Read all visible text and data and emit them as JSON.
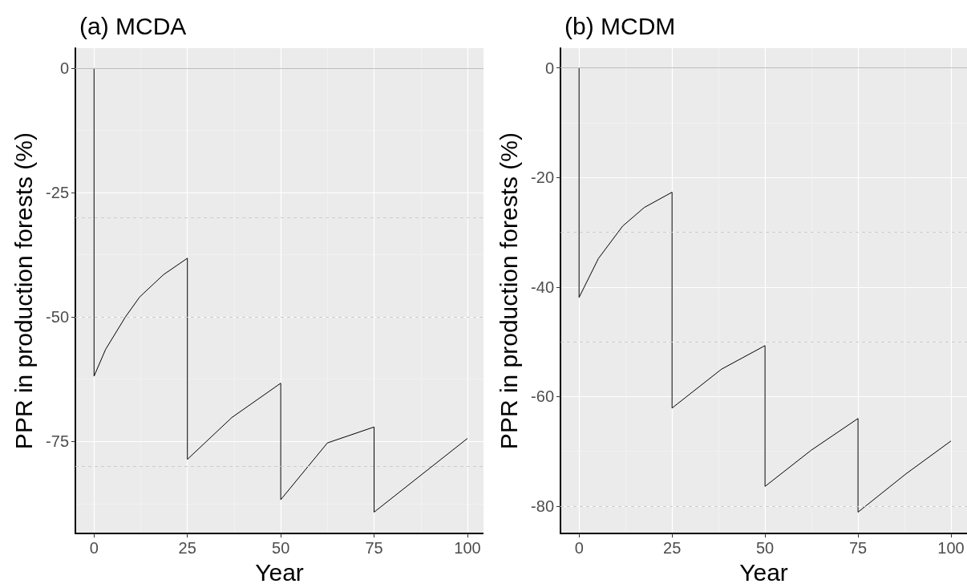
{
  "chart_data": [
    {
      "type": "line",
      "title": "(a) MCDA",
      "xlabel": "Year",
      "ylabel": "PPR in production forests (%)",
      "xlim": [
        -5,
        104.3
      ],
      "xticks": [
        0,
        25,
        50,
        75,
        100
      ],
      "ylim": [
        -93.5,
        4
      ],
      "yticks": [
        0,
        -25,
        -50,
        -75
      ],
      "grid": true,
      "marker": "none",
      "line_style": "solid",
      "series": [
        {
          "color": "#000000",
          "x": [
            0,
            0,
            3.1,
            8.4,
            12.2,
            18.6,
            25,
            25,
            36.9,
            50,
            50,
            62.5,
            75,
            75,
            100
          ],
          "values": [
            0,
            -61.9,
            -56.5,
            -50,
            -46,
            -41.5,
            -38.2,
            -78.6,
            -70.2,
            -63.3,
            -86.7,
            -75.3,
            -72.1,
            -89.2,
            -74.4
          ]
        }
      ],
      "ref_lines": [
        {
          "axis": "y",
          "value": 0,
          "color": "#bebebe",
          "line_style": "solid"
        },
        {
          "axis": "y",
          "value": -30,
          "color": "#cccccc",
          "line_style": "dashed"
        },
        {
          "axis": "y",
          "value": -50,
          "color": "#cccccc",
          "line_style": "dashed"
        },
        {
          "axis": "y",
          "value": -80,
          "color": "#cccccc",
          "line_style": "dashed"
        }
      ]
    },
    {
      "type": "line",
      "title": "(b) MCDM",
      "xlabel": "Year",
      "ylabel": "PPR in production forests (%)",
      "xlim": [
        -5,
        104.3
      ],
      "xticks": [
        0,
        25,
        50,
        75,
        100
      ],
      "ylim": [
        -85,
        3.6
      ],
      "yticks": [
        0,
        -20,
        -40,
        -60,
        -80
      ],
      "grid": true,
      "marker": "none",
      "line_style": "solid",
      "series": [
        {
          "color": "#000000",
          "x": [
            0,
            0,
            5.2,
            11.7,
            17.5,
            25,
            25,
            38.3,
            50,
            50,
            62.4,
            75,
            75,
            87.9,
            100
          ],
          "values": [
            0,
            -41.9,
            -34.8,
            -28.9,
            -25.5,
            -22.7,
            -62.1,
            -55,
            -50.7,
            -76.4,
            -69.8,
            -64,
            -81.1,
            -74.1,
            -68.1
          ]
        }
      ],
      "ref_lines": [
        {
          "axis": "y",
          "value": 0,
          "color": "#bebebe",
          "line_style": "solid"
        },
        {
          "axis": "y",
          "value": -30,
          "color": "#cccccc",
          "line_style": "dashed"
        },
        {
          "axis": "y",
          "value": -50,
          "color": "#cccccc",
          "line_style": "dashed"
        },
        {
          "axis": "y",
          "value": -80,
          "color": "#cccccc",
          "line_style": "dashed"
        }
      ]
    }
  ]
}
